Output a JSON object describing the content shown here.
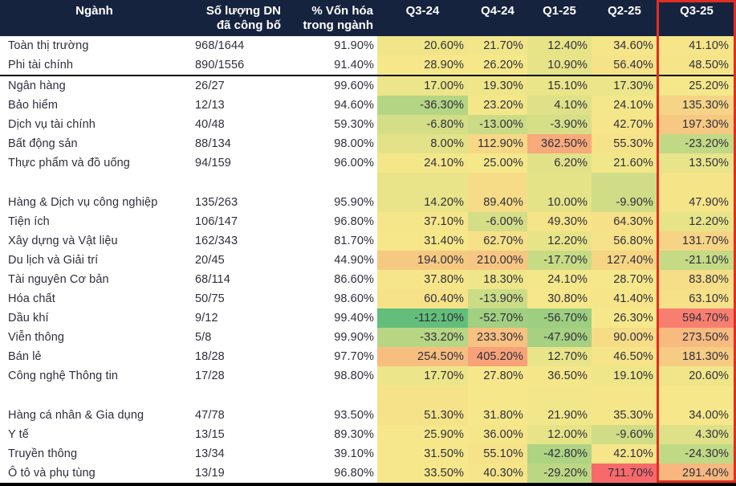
{
  "colors": {
    "header_bg": "#16233e",
    "header_text": "#ffffff",
    "body_text": "#2f2e3c",
    "scale_min_green": "#63be7b",
    "scale_mid_yellow": "#f6e88a",
    "scale_max_red": "#f8696b",
    "highlight_border_red": "#e12d21",
    "divider_black": "#000000",
    "page_bg": "#ffffff"
  },
  "header": {
    "industry": "Ngành",
    "count_line1": "Số lượng DN",
    "count_line2": "đã công bố",
    "cap_line1": "% Vốn hóa",
    "cap_line2": "trong ngành"
  },
  "chart_data": {
    "type": "heatmap",
    "title": "",
    "columns": [
      "Q3-24",
      "Q4-24",
      "Q1-25",
      "Q2-25",
      "Q3-25"
    ],
    "highlighted_column": "Q3-25",
    "highlighted_column_index": 4,
    "value_format": "percent_2dp",
    "colormap": {
      "min_color": "#63be7b",
      "mid_color": "#f6e88a",
      "max_color": "#f8696b",
      "midpoint": "median_of_all_values",
      "note": "green = lowest growth, yellow = median, red = highest growth"
    },
    "rows": [
      {
        "name": "Toàn thị trường",
        "count": "968/1644",
        "cap": "91.90%",
        "values": [
          20.6,
          21.7,
          12.4,
          34.6,
          41.1
        ]
      },
      {
        "name": "Phi tài chính",
        "count": "890/1556",
        "cap": "91.40%",
        "values": [
          28.9,
          26.2,
          10.9,
          56.4,
          48.5
        ],
        "divider_below": true
      },
      {
        "name": "Ngân hàng",
        "count": "26/27",
        "cap": "99.60%",
        "values": [
          17.0,
          19.3,
          15.1,
          17.3,
          25.2
        ]
      },
      {
        "name": "Bảo hiểm",
        "count": "12/13",
        "cap": "94.60%",
        "values": [
          -36.3,
          23.2,
          4.1,
          24.1,
          135.3
        ]
      },
      {
        "name": "Dịch vụ tài chính",
        "count": "40/48",
        "cap": "59.30%",
        "values": [
          -6.8,
          -13.0,
          -3.9,
          42.7,
          197.3
        ]
      },
      {
        "name": "Bất động sản",
        "count": "88/134",
        "cap": "98.00%",
        "values": [
          8.0,
          112.9,
          362.5,
          55.3,
          -23.2
        ]
      },
      {
        "name": "Thực phẩm và đồ uống",
        "count": "94/159",
        "cap": "96.00%",
        "values": [
          24.1,
          25.0,
          6.2,
          21.6,
          13.5
        ]
      },
      {
        "gap": true
      },
      {
        "name": "Hàng & Dịch vụ công nghiệp",
        "count": "135/263",
        "cap": "95.90%",
        "values": [
          14.2,
          89.4,
          10.0,
          -9.9,
          47.9
        ]
      },
      {
        "name": "Tiện ích",
        "count": "106/147",
        "cap": "96.80%",
        "values": [
          37.1,
          -6.0,
          49.3,
          64.3,
          12.2
        ]
      },
      {
        "name": "Xây dựng và Vật liệu",
        "count": "162/343",
        "cap": "81.70%",
        "values": [
          31.4,
          62.7,
          12.2,
          56.8,
          131.7
        ]
      },
      {
        "name": "Du lịch và Giải trí",
        "count": "20/45",
        "cap": "44.90%",
        "values": [
          194.0,
          210.0,
          -17.7,
          127.4,
          -21.1
        ]
      },
      {
        "name": "Tài nguyên Cơ bản",
        "count": "68/114",
        "cap": "86.60%",
        "values": [
          37.8,
          18.3,
          24.1,
          28.7,
          83.8
        ]
      },
      {
        "name": "Hóa chất",
        "count": "50/75",
        "cap": "98.60%",
        "values": [
          60.4,
          -13.9,
          30.8,
          41.4,
          63.1
        ]
      },
      {
        "name": "Dầu khí",
        "count": "9/12",
        "cap": "99.40%",
        "values": [
          -112.1,
          -52.7,
          -56.7,
          26.3,
          594.7
        ]
      },
      {
        "name": "Viễn thông",
        "count": "5/8",
        "cap": "99.90%",
        "values": [
          -33.2,
          233.3,
          -47.9,
          90.0,
          273.5
        ]
      },
      {
        "name": "Bán lẻ",
        "count": "18/28",
        "cap": "97.70%",
        "values": [
          254.5,
          405.2,
          12.7,
          46.5,
          181.3
        ]
      },
      {
        "name": "Công nghệ Thông tin",
        "count": "17/28",
        "cap": "98.80%",
        "values": [
          17.7,
          27.8,
          36.5,
          19.1,
          20.6
        ]
      },
      {
        "gap": true
      },
      {
        "name": "Hàng cá nhân & Gia dụng",
        "count": "47/78",
        "cap": "93.50%",
        "values": [
          51.3,
          31.8,
          21.9,
          35.3,
          34.0
        ]
      },
      {
        "name": "Y tế",
        "count": "13/15",
        "cap": "89.30%",
        "values": [
          25.9,
          36.0,
          12.0,
          -9.6,
          4.3
        ]
      },
      {
        "name": "Truyền thông",
        "count": "13/34",
        "cap": "39.10%",
        "values": [
          31.5,
          55.1,
          -42.8,
          42.1,
          -24.3
        ]
      },
      {
        "name": "Ô tô và phụ tùng",
        "count": "13/19",
        "cap": "96.80%",
        "values": [
          33.5,
          40.3,
          -29.2,
          711.7,
          291.4
        ]
      }
    ]
  }
}
